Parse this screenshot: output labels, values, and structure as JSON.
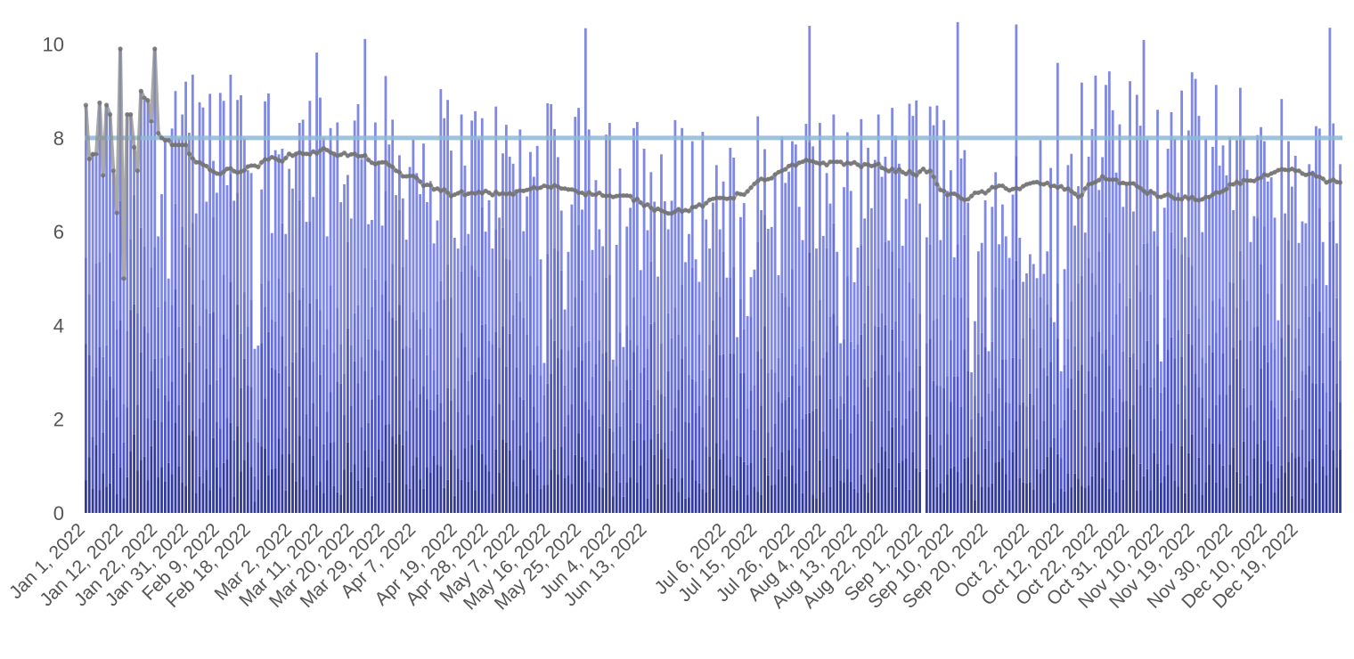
{
  "chart_data": {
    "type": "bar",
    "title": "",
    "xlabel": "",
    "ylabel": "",
    "ylim": [
      0,
      10.6
    ],
    "y_ticks": [
      0,
      2,
      4,
      6,
      8,
      10
    ],
    "grid": false,
    "legend": "none",
    "x_start_date": "2022-01-01",
    "x_tick_labels": [
      "Jan 1, 2022",
      "Jan 12, 2022",
      "Jan 22, 2022",
      "Jan 31, 2022",
      "Feb 9, 2022",
      "Feb 18, 2022",
      "Mar 2, 2022",
      "Mar 11, 2022",
      "Mar 20, 2022",
      "Mar 29, 2022",
      "Apr 7, 2022",
      "Apr 19, 2022",
      "Apr 28, 2022",
      "May 7, 2022",
      "May 16, 2022",
      "May 25, 2022",
      "Jun 4, 2022",
      "Jun 13, 2022",
      "Jul 6, 2022",
      "Jul 15, 2022",
      "Jul 26, 2022",
      "Aug 4, 2022",
      "Aug 13, 2022",
      "Aug 22, 2022",
      "Sep 1, 2022",
      "Sep 10, 2022",
      "Sep 20, 2022",
      "Oct 2, 2022",
      "Oct 12, 2022",
      "Oct 22, 2022",
      "Oct 31, 2022",
      "Nov 10, 2022",
      "Nov 19, 2022",
      "Nov 30, 2022",
      "Dec 10, 2022",
      "Dec 19, 2022"
    ],
    "reference_line": {
      "value": 8
    },
    "colors": {
      "bar_top": "#7f88e4",
      "bar_mid": "#6870d9",
      "bar_low": "#4e55c6",
      "bar_base": "#323a9e",
      "moving_average": "#8e8e8e",
      "reference_line": "#8fb8d6"
    },
    "days": 365,
    "stacked_series_count": 4,
    "daily_values_sample_note_free": [
      8.7,
      7.6,
      7.7,
      7.6,
      8.7,
      7.2,
      8.7,
      8.5,
      7.3,
      6.4,
      9.9,
      5.0,
      8.5,
      8.5,
      7.8,
      7.3,
      9.0,
      8.8,
      8.8,
      8.3,
      9.9,
      5.9,
      6.8,
      8.0,
      5.0,
      8.2,
      9.0,
      8.0,
      8.5,
      9.2
    ],
    "moving_average_sample": [
      8.7,
      7.55,
      7.65,
      7.65,
      8.75,
      7.2,
      8.7,
      8.5,
      7.3,
      6.4,
      9.9,
      5.0,
      8.5,
      8.5,
      7.8,
      7.3,
      9.0,
      8.85,
      8.8,
      8.35,
      9.9,
      8.1,
      8.0,
      7.95,
      7.95,
      7.85,
      7.85,
      7.85,
      7.85,
      7.85
    ]
  }
}
